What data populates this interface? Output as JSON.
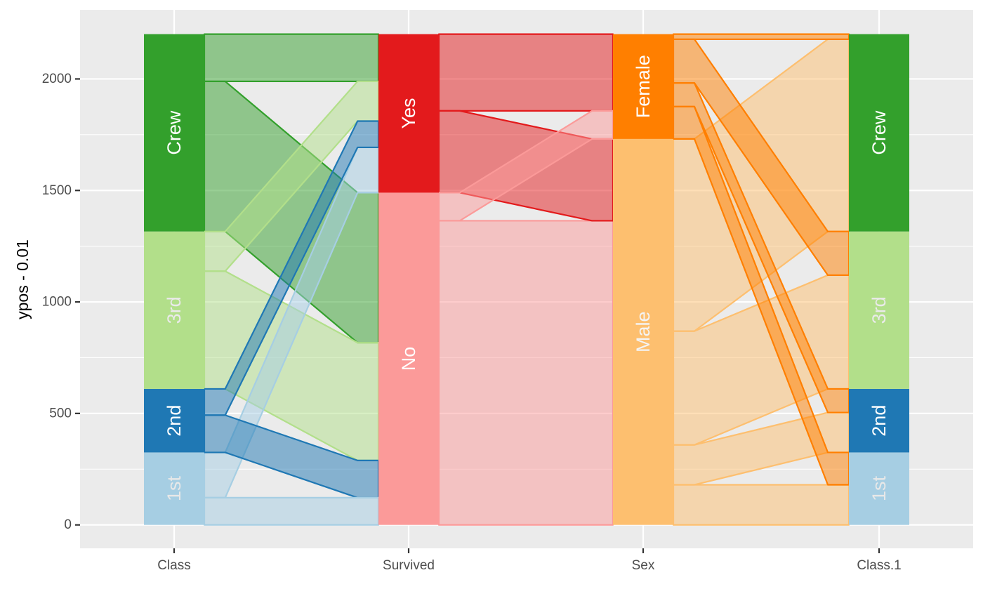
{
  "chart_data": {
    "type": "parallel-sets",
    "ylabel": "ypos - 0.01",
    "xlabel": "",
    "ylim": [
      -105,
      2310
    ],
    "grid": true,
    "y_ticks": [
      0,
      500,
      1000,
      1500,
      2000
    ],
    "axes": [
      "Class",
      "Survived",
      "Sex",
      "Class.1"
    ],
    "categories": {
      "Class": [
        "1st",
        "2nd",
        "3rd",
        "Crew"
      ],
      "Survived": [
        "No",
        "Yes"
      ],
      "Sex": [
        "Male",
        "Female"
      ],
      "Class.1": [
        "1st",
        "2nd",
        "3rd",
        "Crew"
      ]
    },
    "category_colors": {
      "Class": {
        "1st": "#a6cee3",
        "2nd": "#1f78b4",
        "3rd": "#b2df8a",
        "Crew": "#33a02c"
      },
      "Survived": {
        "No": "#fb9a99",
        "Yes": "#e31a1c"
      },
      "Sex": {
        "Male": "#fdbf6f",
        "Female": "#ff7f00"
      },
      "Class.1": {
        "1st": "#a6cee3",
        "2nd": "#1f78b4",
        "3rd": "#b2df8a",
        "Crew": "#33a02c"
      }
    },
    "label_colors": {
      "1st": "#e8e8e8",
      "2nd": "#ffffff",
      "3rd": "#eaeaea",
      "Crew": "#ffffff",
      "No": "#ffffff",
      "Yes": "#ffffff",
      "Male": "#f4f4f4",
      "Female": "#ffffff"
    },
    "counts": [
      {
        "Class": "1st",
        "Sex": "Male",
        "Survived": "No",
        "n": 118
      },
      {
        "Class": "2nd",
        "Sex": "Male",
        "Survived": "No",
        "n": 154
      },
      {
        "Class": "3rd",
        "Sex": "Male",
        "Survived": "No",
        "n": 422
      },
      {
        "Class": "Crew",
        "Sex": "Male",
        "Survived": "No",
        "n": 670
      },
      {
        "Class": "1st",
        "Sex": "Female",
        "Survived": "No",
        "n": 4
      },
      {
        "Class": "2nd",
        "Sex": "Female",
        "Survived": "No",
        "n": 13
      },
      {
        "Class": "3rd",
        "Sex": "Female",
        "Survived": "No",
        "n": 106
      },
      {
        "Class": "Crew",
        "Sex": "Female",
        "Survived": "No",
        "n": 3
      },
      {
        "Class": "1st",
        "Sex": "Male",
        "Survived": "Yes",
        "n": 62
      },
      {
        "Class": "2nd",
        "Sex": "Male",
        "Survived": "Yes",
        "n": 25
      },
      {
        "Class": "3rd",
        "Sex": "Male",
        "Survived": "Yes",
        "n": 88
      },
      {
        "Class": "Crew",
        "Sex": "Male",
        "Survived": "Yes",
        "n": 192
      },
      {
        "Class": "1st",
        "Sex": "Female",
        "Survived": "Yes",
        "n": 141
      },
      {
        "Class": "2nd",
        "Sex": "Female",
        "Survived": "Yes",
        "n": 93
      },
      {
        "Class": "3rd",
        "Sex": "Female",
        "Survived": "Yes",
        "n": 90
      },
      {
        "Class": "Crew",
        "Sex": "Female",
        "Survived": "Yes",
        "n": 20
      }
    ]
  }
}
